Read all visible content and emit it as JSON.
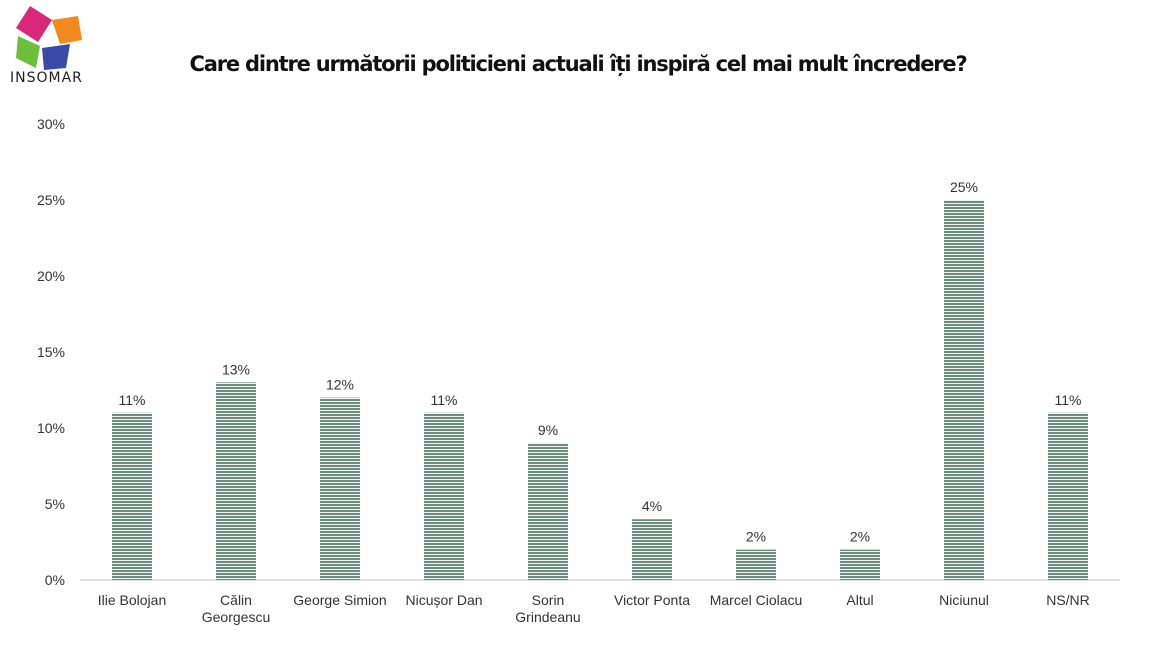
{
  "brand": {
    "name": "INSOMAR",
    "logo_icon": "colorful-diamond-logo-icon"
  },
  "chart_data": {
    "type": "bar",
    "title": "Care dintre următorii politicieni actuali îți inspiră cel mai mult încredere?",
    "xlabel": "",
    "ylabel": "",
    "categories": [
      "Ilie Bolojan",
      "Călin Georgescu",
      "George Simion",
      "Nicușor Dan",
      "Sorin Grindeanu",
      "Victor Ponta",
      "Marcel Ciolacu",
      "Altul",
      "Niciunul",
      "NS/NR"
    ],
    "category_lines": [
      [
        "Ilie Bolojan"
      ],
      [
        "Călin",
        "Georgescu"
      ],
      [
        "George Simion"
      ],
      [
        "Nicușor Dan"
      ],
      [
        "Sorin",
        "Grindeanu"
      ],
      [
        "Victor Ponta"
      ],
      [
        "Marcel Ciolacu"
      ],
      [
        "Altul"
      ],
      [
        "Niciunul"
      ],
      [
        "NS/NR"
      ]
    ],
    "values": [
      11,
      13,
      12,
      11,
      9,
      4,
      2,
      2,
      25,
      11
    ],
    "data_labels": [
      "11%",
      "13%",
      "12%",
      "11%",
      "9%",
      "4%",
      "2%",
      "2%",
      "25%",
      "11%"
    ],
    "ylim": [
      0,
      30
    ],
    "yticks": [
      0,
      5,
      10,
      15,
      20,
      25,
      30
    ],
    "ytick_labels": [
      "0%",
      "5%",
      "10%",
      "15%",
      "20%",
      "25%",
      "30%"
    ],
    "grid": false,
    "legend": "none",
    "bar_color": "#6f8c80"
  }
}
